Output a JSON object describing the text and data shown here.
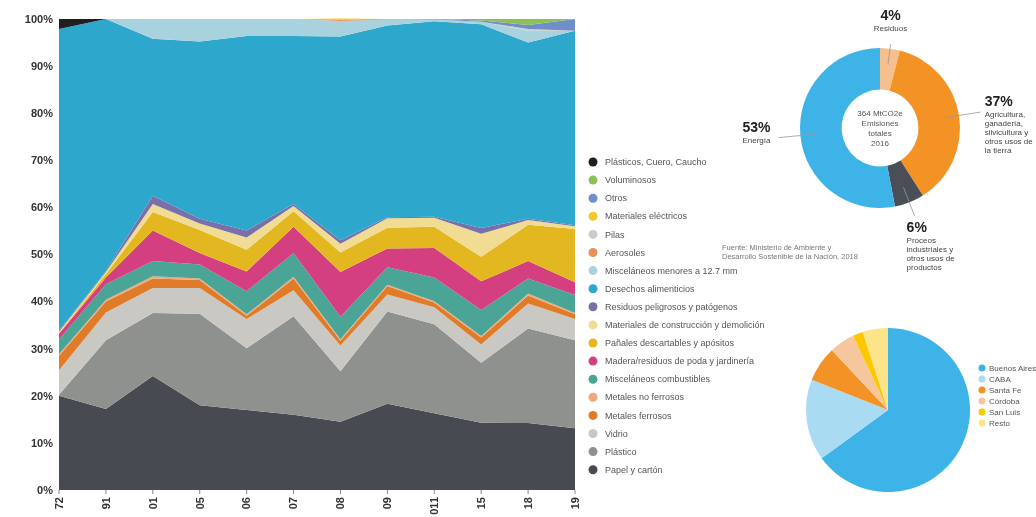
{
  "chart_data": [
    {
      "type": "area",
      "stacked": true,
      "legend": "right",
      "categories": [
        "72",
        "91",
        "01",
        "05",
        "06",
        "07",
        "08",
        "09",
        "011",
        "15",
        "18",
        "19"
      ],
      "ylim": [
        0,
        100
      ],
      "yticks": [
        {
          "value": 0,
          "label": "0%"
        },
        {
          "value": 10,
          "label": "10%"
        },
        {
          "value": 20,
          "label": "20%"
        },
        {
          "value": 30,
          "label": "30%"
        },
        {
          "value": 40,
          "label": "40%"
        },
        {
          "value": 50,
          "label": "50%"
        },
        {
          "value": 60,
          "label": "60%"
        },
        {
          "value": 70,
          "label": "70%"
        },
        {
          "value": 80,
          "label": "80%"
        },
        {
          "value": 90,
          "label": "90%"
        },
        {
          "value": 100,
          "label": "100%"
        }
      ],
      "series": [
        {
          "name": "Papel y cartón",
          "color": "#474b51",
          "values": [
            20,
            17.2,
            24.2,
            18,
            17,
            16,
            14.5,
            18.3,
            16.3,
            14.3,
            14.2,
            13.1
          ]
        },
        {
          "name": "Plástico",
          "color": "#8e918e",
          "values": [
            0.2,
            14.6,
            13.4,
            19.4,
            13.1,
            20.9,
            10.7,
            19.6,
            18.9,
            12.7,
            20.1,
            18.7
          ]
        },
        {
          "name": "Vidrio",
          "color": "#c9c8c3",
          "values": [
            5.2,
            5.9,
            5.3,
            5.5,
            6.2,
            5.5,
            5.5,
            3.6,
            3.6,
            3.9,
            5.3,
            4.5
          ]
        },
        {
          "name": "Metales ferrosos",
          "color": "#e07b2a",
          "values": [
            3.1,
            2.3,
            2.0,
            1.7,
            0.7,
            2.5,
            1.0,
            1.8,
            1.0,
            1.5,
            1.7,
            1.0
          ]
        },
        {
          "name": "Metales no ferrosos",
          "color": "#f0a878",
          "values": [
            0.3,
            0.4,
            0.5,
            0.3,
            0.3,
            0.4,
            0.3,
            0.3,
            0.3,
            0.3,
            0.4,
            0.3
          ]
        },
        {
          "name": "Misceláneos combustibles",
          "color": "#4aa597",
          "values": [
            3.2,
            3.3,
            3.2,
            3.0,
            4.9,
            5.0,
            4.8,
            3.7,
            5.0,
            5.5,
            3.2,
            3.8
          ]
        },
        {
          "name": "Madera/residuos de poda y jardinería",
          "color": "#d43f80",
          "values": [
            1.2,
            1.4,
            6.5,
            2.4,
            4.2,
            5.6,
            9.5,
            4.0,
            6.3,
            6.1,
            3.7,
            2.7
          ]
        },
        {
          "name": "Pañales descartables y apósitos",
          "color": "#e3b71f",
          "values": [
            0.1,
            0.7,
            3.9,
            4.9,
            4.6,
            3.3,
            4.1,
            4.4,
            4.5,
            5.2,
            7.7,
            11.3
          ]
        },
        {
          "name": "Materiales de construcción y demolición",
          "color": "#f0dc92",
          "values": [
            0.3,
            0.5,
            1.7,
            1.4,
            2.6,
            1.1,
            1.9,
            2.0,
            1.9,
            4.9,
            1.0,
            0.6
          ]
        },
        {
          "name": "Residuos peligrosos y patógenos",
          "color": "#7a6fa8",
          "values": [
            0.2,
            0.2,
            1.8,
            1.0,
            1.5,
            0.4,
            0.7,
            0.2,
            0.2,
            1.2,
            0.3,
            0.2
          ]
        },
        {
          "name": "Desechos alimenticios",
          "color": "#2ea7cc",
          "values": [
            64.1,
            53.5,
            33.3,
            37.6,
            41.3,
            35.7,
            43.3,
            40.7,
            41.5,
            43.3,
            37.4,
            41.3
          ]
        },
        {
          "name": "Misceláneos menores a 12.7 mm",
          "color": "#a8d3de",
          "values": [
            0,
            0,
            4.2,
            4.8,
            3.6,
            3.6,
            3.3,
            1.3,
            0.4,
            0.5,
            2.5,
            0
          ]
        },
        {
          "name": "Aerosoles",
          "color": "#e8905a",
          "values": [
            null,
            null,
            null,
            null,
            null,
            0,
            0.3,
            0.1,
            0,
            null,
            null,
            null
          ]
        },
        {
          "name": "Pilas",
          "color": "#cccccc",
          "values": [
            null,
            null,
            null,
            null,
            null,
            null,
            null,
            null,
            null,
            0,
            0.4,
            0
          ]
        },
        {
          "name": "Materiales eléctricos",
          "color": "#f0c830",
          "values": [
            null,
            null,
            null,
            null,
            null,
            0,
            0.2,
            0,
            null,
            null,
            null,
            null
          ]
        },
        {
          "name": "Otros",
          "color": "#6f8fc8",
          "values": [
            null,
            null,
            null,
            null,
            null,
            null,
            null,
            0,
            0.1,
            0.3,
            0.8,
            2.5
          ]
        },
        {
          "name": "Voluminosos",
          "color": "#8dc057",
          "values": [
            null,
            null,
            null,
            null,
            null,
            null,
            null,
            null,
            0,
            0.3,
            1.3,
            0
          ]
        },
        {
          "name": "Plásticos, Cuero, Caucho",
          "color": "#1f1f1f",
          "values": [
            2.1,
            0,
            null,
            null,
            null,
            null,
            null,
            null,
            null,
            null,
            null,
            null
          ]
        }
      ]
    },
    {
      "type": "donut",
      "categories": [
        "Residuos",
        "Agricultura, ganadería, silvicultura y otros usos de la tierra",
        "Proceos industriales y otros usos de productos",
        "Energía"
      ],
      "values": [
        4,
        37,
        6,
        53
      ],
      "colors": [
        "#f5c08e",
        "#f39325",
        "#4a4e57",
        "#3db3e8"
      ],
      "value_labels": [
        "4%",
        "37%",
        "6%",
        "53%"
      ],
      "annotations": [
        "364 MtCO2e Emisiones totales 2016",
        "Fuente: Ministerio de Ambiente y Desarrollo Sostenible de la Nación, 2018"
      ]
    },
    {
      "type": "pie",
      "legend": "right",
      "categories": [
        "Buenos Aires",
        "CABA",
        "Santa Fe",
        "Córdoba",
        "San Luis",
        "Resto"
      ],
      "values": [
        65,
        16,
        7,
        5,
        2,
        5
      ],
      "colors": [
        "#3db3e8",
        "#a9dcf3",
        "#f39325",
        "#f6c69c",
        "#fcc800",
        "#fde48a"
      ]
    }
  ]
}
